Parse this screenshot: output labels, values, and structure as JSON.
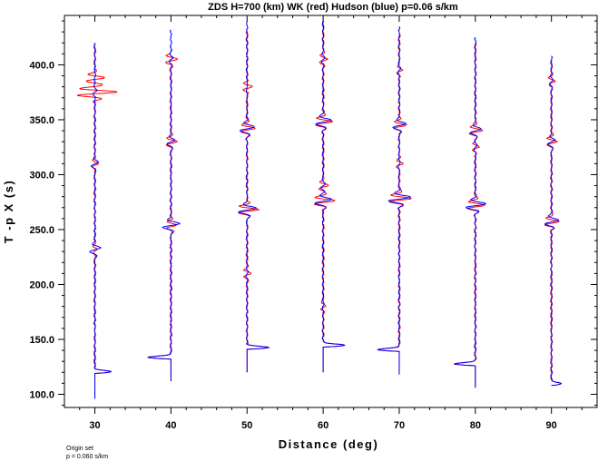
{
  "chart_data": {
    "type": "line",
    "title": "ZDS H=700 (km) WK (red) Hudson (blue) p=0.06 s/km",
    "xlabel": "Distance (deg)",
    "ylabel": "T -p X (s)",
    "xlim": [
      26,
      96
    ],
    "ylim": [
      88,
      445
    ],
    "x_ticks": [
      30,
      40,
      50,
      60,
      70,
      80,
      90
    ],
    "x_tick_labels": [
      "30",
      "40",
      "50",
      "60",
      "70",
      "80",
      "90"
    ],
    "y_ticks": [
      100,
      150,
      200,
      250,
      300,
      350,
      400
    ],
    "y_tick_labels": [
      "100.0",
      "150.0",
      "200.0",
      "250.0",
      "300.0",
      "350.0",
      "400.0"
    ],
    "grid": false,
    "series": [
      {
        "name": "WK (red)",
        "color": "#ff0000"
      },
      {
        "name": "Hudson (blue)",
        "color": "#0000ff"
      }
    ],
    "traces": [
      {
        "distance": 30,
        "t_start": 96,
        "t_end": 420,
        "red_end": 418,
        "first_arrival": 120,
        "pulse_amp": 2.2,
        "events": [
          {
            "t": 232,
            "red": 0.3,
            "blue": 0.8
          },
          {
            "t": 310,
            "red": 0.5,
            "blue": 0.6
          },
          {
            "t": 375,
            "red": 3.0,
            "blue": 0.3
          },
          {
            "t": 388,
            "red": 1.4,
            "blue": 0.1
          }
        ]
      },
      {
        "distance": 40,
        "t_start": 112,
        "t_end": 432,
        "red_end": 410,
        "first_arrival": 133,
        "pulse_amp": 3.2,
        "events": [
          {
            "t": 254,
            "red": 0.8,
            "blue": 1.3
          },
          {
            "t": 330,
            "red": 0.8,
            "blue": 0.6
          },
          {
            "t": 405,
            "red": 0.8,
            "blue": 0.2
          }
        ]
      },
      {
        "distance": 50,
        "t_start": 120,
        "t_end": 440,
        "red_end": 430,
        "first_arrival": 142,
        "pulse_amp": 3.0,
        "events": [
          {
            "t": 210,
            "red": 0.5,
            "blue": 0.1
          },
          {
            "t": 268,
            "red": 1.6,
            "blue": 1.4
          },
          {
            "t": 342,
            "red": 1.0,
            "blue": 1.0
          },
          {
            "t": 380,
            "red": 0.8,
            "blue": 0.1
          }
        ]
      },
      {
        "distance": 60,
        "t_start": 120,
        "t_end": 440,
        "red_end": 440,
        "first_arrival": 144,
        "pulse_amp": 3.0,
        "events": [
          {
            "t": 180,
            "red": 0.3,
            "blue": 0.1
          },
          {
            "t": 276,
            "red": 1.7,
            "blue": 1.3
          },
          {
            "t": 290,
            "red": 0.8,
            "blue": 0.4
          },
          {
            "t": 348,
            "red": 1.2,
            "blue": 1.1
          },
          {
            "t": 405,
            "red": 0.5,
            "blue": 0.2
          }
        ]
      },
      {
        "distance": 70,
        "t_start": 118,
        "t_end": 435,
        "red_end": 428,
        "first_arrival": 140,
        "pulse_amp": 3.0,
        "events": [
          {
            "t": 278,
            "red": 1.6,
            "blue": 1.6
          },
          {
            "t": 310,
            "red": 0.6,
            "blue": 0.2
          },
          {
            "t": 345,
            "red": 1.0,
            "blue": 1.0
          },
          {
            "t": 395,
            "red": 0.5,
            "blue": 0.3
          }
        ]
      },
      {
        "distance": 80,
        "t_start": 106,
        "t_end": 425,
        "red_end": 420,
        "first_arrival": 127,
        "pulse_amp": 2.9,
        "events": [
          {
            "t": 272,
            "red": 1.2,
            "blue": 1.4
          },
          {
            "t": 325,
            "red": 0.6,
            "blue": 0.3
          },
          {
            "t": 340,
            "red": 1.0,
            "blue": 0.8
          }
        ]
      },
      {
        "distance": 90,
        "t_start": 108,
        "t_end": 408,
        "red_end": 404,
        "first_arrival": 109,
        "pulse_amp": 1.4,
        "events": [
          {
            "t": 257,
            "red": 1.0,
            "blue": 1.0
          },
          {
            "t": 330,
            "red": 0.8,
            "blue": 0.6
          },
          {
            "t": 385,
            "red": 0.4,
            "blue": 0.2
          }
        ]
      }
    ]
  },
  "footnote": {
    "line1": "Origin set",
    "line2": "p = 0.060 s/km"
  }
}
